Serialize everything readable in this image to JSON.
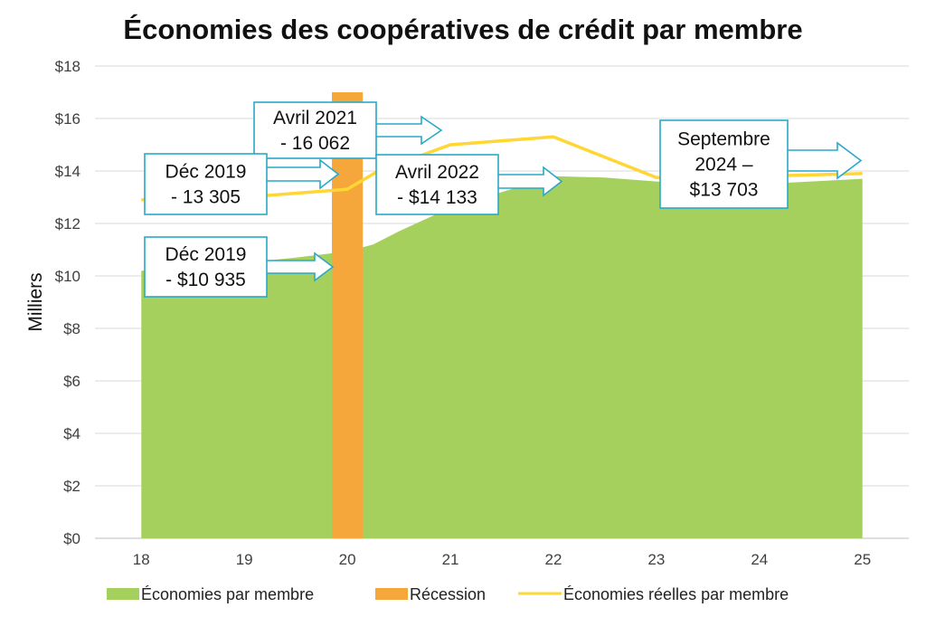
{
  "chart_data": {
    "type": "area",
    "title": "Économies des coopératives de crédit par membre",
    "xlabel": "",
    "ylabel": "Milliers",
    "x": [
      18,
      18.5,
      19,
      19.5,
      20,
      20.25,
      20.5,
      21,
      21.5,
      22,
      22.5,
      23,
      23.5,
      24,
      24.5,
      25
    ],
    "x_ticks": [
      "18",
      "19",
      "20",
      "21",
      "22",
      "23",
      "24",
      "25"
    ],
    "y_ticks": [
      "$0",
      "$2",
      "$4",
      "$6",
      "$8",
      "$10",
      "$12",
      "$14",
      "$16",
      "$18"
    ],
    "ylim": [
      0,
      18
    ],
    "xlim": [
      17.55,
      25.45
    ],
    "grid": true,
    "legend_position": "bottom",
    "series": [
      {
        "name": "Économies par membre",
        "kind": "area",
        "color": "#a6d05e",
        "values": [
          10.2,
          10.3,
          10.5,
          10.7,
          10.935,
          11.2,
          11.7,
          12.6,
          13.2,
          13.8,
          13.75,
          13.6,
          13.55,
          13.5,
          13.6,
          13.703
        ]
      },
      {
        "name": "Récession",
        "kind": "bar",
        "color": "#f5a73b",
        "x_start": 19.85,
        "x_end": 20.15,
        "value": 17
      },
      {
        "name": "Économies réelles par membre",
        "kind": "line",
        "color": "#ffd633",
        "x": [
          18,
          19,
          20,
          20.3,
          21,
          22,
          23,
          24,
          25
        ],
        "values": [
          12.9,
          13.0,
          13.305,
          14.0,
          15.0,
          15.3,
          13.75,
          13.8,
          13.9
        ]
      }
    ],
    "annotations": [
      {
        "lines": [
          "Avril 2021",
          "- 16 062"
        ]
      },
      {
        "lines": [
          "Déc 2019",
          "- 13 305"
        ]
      },
      {
        "lines": [
          "Avril 2022",
          "- $14 133"
        ]
      },
      {
        "lines": [
          "Septembre",
          "2024 –",
          "$13 703"
        ]
      },
      {
        "lines": [
          "Déc 2019",
          "- $10 935"
        ]
      }
    ]
  }
}
